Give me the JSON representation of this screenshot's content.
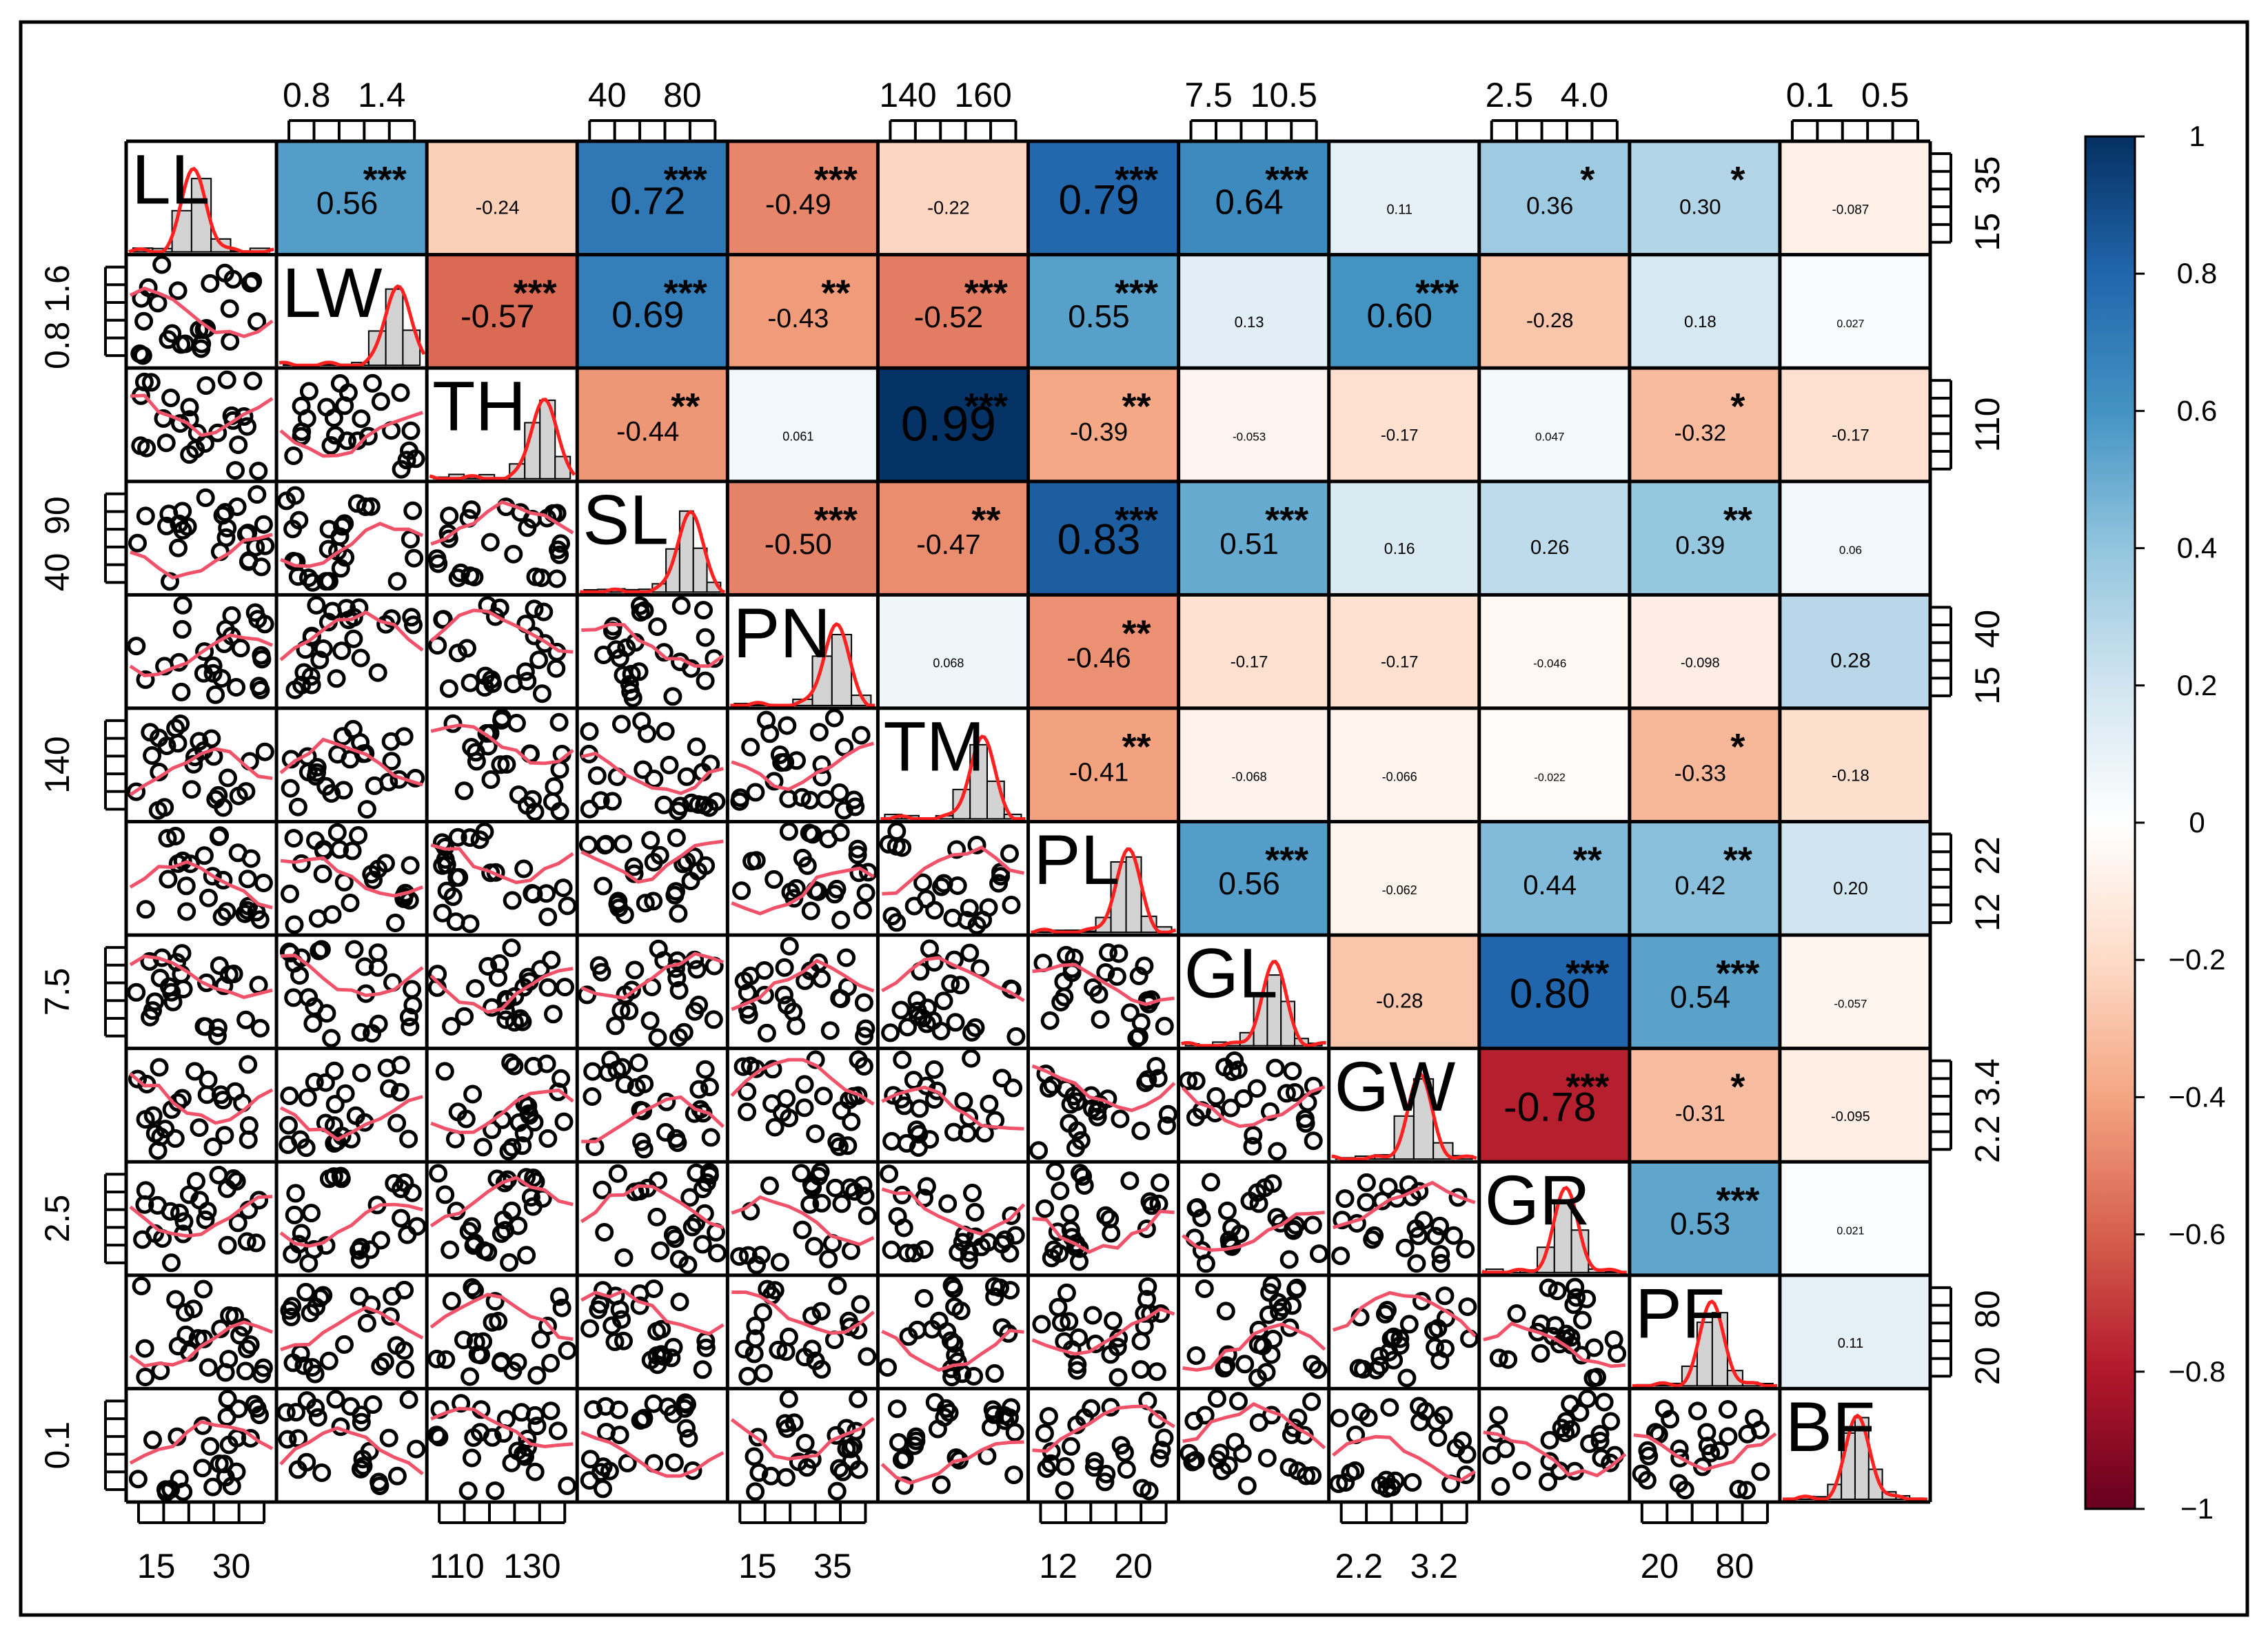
{
  "chart_data": {
    "type": "correlation-matrix",
    "variables": [
      "LL",
      "LW",
      "TH",
      "SL",
      "PN",
      "TM",
      "PL",
      "GL",
      "GW",
      "GR",
      "PF",
      "BF"
    ],
    "correlations": [
      {
        "row": 0,
        "col": 1,
        "r": 0.56,
        "label": "0.56",
        "sig": "***"
      },
      {
        "row": 0,
        "col": 2,
        "r": -0.24,
        "label": "-0.24",
        "sig": ""
      },
      {
        "row": 0,
        "col": 3,
        "r": 0.72,
        "label": "0.72",
        "sig": "***"
      },
      {
        "row": 0,
        "col": 4,
        "r": -0.49,
        "label": "-0.49",
        "sig": "***"
      },
      {
        "row": 0,
        "col": 5,
        "r": -0.22,
        "label": "-0.22",
        "sig": ""
      },
      {
        "row": 0,
        "col": 6,
        "r": 0.79,
        "label": "0.79",
        "sig": "***"
      },
      {
        "row": 0,
        "col": 7,
        "r": 0.64,
        "label": "0.64",
        "sig": "***"
      },
      {
        "row": 0,
        "col": 8,
        "r": 0.11,
        "label": "0.11",
        "sig": ""
      },
      {
        "row": 0,
        "col": 9,
        "r": 0.36,
        "label": "0.36",
        "sig": "*"
      },
      {
        "row": 0,
        "col": 10,
        "r": 0.3,
        "label": "0.30",
        "sig": "*"
      },
      {
        "row": 0,
        "col": 11,
        "r": -0.087,
        "label": "-0.087",
        "sig": ""
      },
      {
        "row": 1,
        "col": 2,
        "r": -0.57,
        "label": "-0.57",
        "sig": "***"
      },
      {
        "row": 1,
        "col": 3,
        "r": 0.69,
        "label": "0.69",
        "sig": "***"
      },
      {
        "row": 1,
        "col": 4,
        "r": -0.43,
        "label": "-0.43",
        "sig": "**"
      },
      {
        "row": 1,
        "col": 5,
        "r": -0.52,
        "label": "-0.52",
        "sig": "***"
      },
      {
        "row": 1,
        "col": 6,
        "r": 0.55,
        "label": "0.55",
        "sig": "***"
      },
      {
        "row": 1,
        "col": 7,
        "r": 0.13,
        "label": "0.13",
        "sig": ""
      },
      {
        "row": 1,
        "col": 8,
        "r": 0.6,
        "label": "0.60",
        "sig": "***"
      },
      {
        "row": 1,
        "col": 9,
        "r": -0.28,
        "label": "-0.28",
        "sig": ""
      },
      {
        "row": 1,
        "col": 10,
        "r": 0.18,
        "label": "0.18",
        "sig": ""
      },
      {
        "row": 1,
        "col": 11,
        "r": 0.027,
        "label": "0.027",
        "sig": ""
      },
      {
        "row": 2,
        "col": 3,
        "r": -0.44,
        "label": "-0.44",
        "sig": "**"
      },
      {
        "row": 2,
        "col": 4,
        "r": 0.061,
        "label": "0.061",
        "sig": ""
      },
      {
        "row": 2,
        "col": 5,
        "r": 0.99,
        "label": "0.99",
        "sig": "***"
      },
      {
        "row": 2,
        "col": 6,
        "r": -0.39,
        "label": "-0.39",
        "sig": "**"
      },
      {
        "row": 2,
        "col": 7,
        "r": -0.053,
        "label": "-0.053",
        "sig": ""
      },
      {
        "row": 2,
        "col": 8,
        "r": -0.17,
        "label": "-0.17",
        "sig": ""
      },
      {
        "row": 2,
        "col": 9,
        "r": 0.047,
        "label": "0.047",
        "sig": ""
      },
      {
        "row": 2,
        "col": 10,
        "r": -0.32,
        "label": "-0.32",
        "sig": "*"
      },
      {
        "row": 2,
        "col": 11,
        "r": -0.17,
        "label": "-0.17",
        "sig": ""
      },
      {
        "row": 3,
        "col": 4,
        "r": -0.5,
        "label": "-0.50",
        "sig": "***"
      },
      {
        "row": 3,
        "col": 5,
        "r": -0.47,
        "label": "-0.47",
        "sig": "**"
      },
      {
        "row": 3,
        "col": 6,
        "r": 0.83,
        "label": "0.83",
        "sig": "***"
      },
      {
        "row": 3,
        "col": 7,
        "r": 0.51,
        "label": "0.51",
        "sig": "***"
      },
      {
        "row": 3,
        "col": 8,
        "r": 0.16,
        "label": "0.16",
        "sig": ""
      },
      {
        "row": 3,
        "col": 9,
        "r": 0.26,
        "label": "0.26",
        "sig": ""
      },
      {
        "row": 3,
        "col": 10,
        "r": 0.39,
        "label": "0.39",
        "sig": "**"
      },
      {
        "row": 3,
        "col": 11,
        "r": 0.06,
        "label": "0.06",
        "sig": ""
      },
      {
        "row": 4,
        "col": 5,
        "r": 0.068,
        "label": "0.068",
        "sig": ""
      },
      {
        "row": 4,
        "col": 6,
        "r": -0.46,
        "label": "-0.46",
        "sig": "**"
      },
      {
        "row": 4,
        "col": 7,
        "r": -0.17,
        "label": "-0.17",
        "sig": ""
      },
      {
        "row": 4,
        "col": 8,
        "r": -0.17,
        "label": "-0.17",
        "sig": ""
      },
      {
        "row": 4,
        "col": 9,
        "r": -0.046,
        "label": "-0.046",
        "sig": ""
      },
      {
        "row": 4,
        "col": 10,
        "r": -0.098,
        "label": "-0.098",
        "sig": ""
      },
      {
        "row": 4,
        "col": 11,
        "r": 0.28,
        "label": "0.28",
        "sig": ""
      },
      {
        "row": 5,
        "col": 6,
        "r": -0.41,
        "label": "-0.41",
        "sig": "**"
      },
      {
        "row": 5,
        "col": 7,
        "r": -0.068,
        "label": "-0.068",
        "sig": ""
      },
      {
        "row": 5,
        "col": 8,
        "r": -0.066,
        "label": "-0.066",
        "sig": ""
      },
      {
        "row": 5,
        "col": 9,
        "r": -0.022,
        "label": "-0.022",
        "sig": ""
      },
      {
        "row": 5,
        "col": 10,
        "r": -0.33,
        "label": "-0.33",
        "sig": "*"
      },
      {
        "row": 5,
        "col": 11,
        "r": -0.18,
        "label": "-0.18",
        "sig": ""
      },
      {
        "row": 6,
        "col": 7,
        "r": 0.56,
        "label": "0.56",
        "sig": "***"
      },
      {
        "row": 6,
        "col": 8,
        "r": -0.062,
        "label": "-0.062",
        "sig": ""
      },
      {
        "row": 6,
        "col": 9,
        "r": 0.44,
        "label": "0.44",
        "sig": "**"
      },
      {
        "row": 6,
        "col": 10,
        "r": 0.42,
        "label": "0.42",
        "sig": "**"
      },
      {
        "row": 6,
        "col": 11,
        "r": 0.2,
        "label": "0.20",
        "sig": ""
      },
      {
        "row": 7,
        "col": 8,
        "r": -0.28,
        "label": "-0.28",
        "sig": ""
      },
      {
        "row": 7,
        "col": 9,
        "r": 0.8,
        "label": "0.80",
        "sig": "***"
      },
      {
        "row": 7,
        "col": 10,
        "r": 0.54,
        "label": "0.54",
        "sig": "***"
      },
      {
        "row": 7,
        "col": 11,
        "r": -0.057,
        "label": "-0.057",
        "sig": ""
      },
      {
        "row": 8,
        "col": 9,
        "r": -0.78,
        "label": "-0.78",
        "sig": "***"
      },
      {
        "row": 8,
        "col": 10,
        "r": -0.31,
        "label": "-0.31",
        "sig": "*"
      },
      {
        "row": 8,
        "col": 11,
        "r": -0.095,
        "label": "-0.095",
        "sig": ""
      },
      {
        "row": 9,
        "col": 10,
        "r": 0.53,
        "label": "0.53",
        "sig": "***"
      },
      {
        "row": 9,
        "col": 11,
        "r": 0.021,
        "label": "0.021",
        "sig": ""
      },
      {
        "row": 10,
        "col": 11,
        "r": 0.11,
        "label": "0.11",
        "sig": ""
      }
    ],
    "axis_labels": {
      "top": [
        {
          "col": 1,
          "labels": [
            "0.8",
            "1.4"
          ]
        },
        {
          "col": 3,
          "labels": [
            "40",
            "80"
          ]
        },
        {
          "col": 5,
          "labels": [
            "140",
            "160"
          ]
        },
        {
          "col": 7,
          "labels": [
            "7.5",
            "10.5"
          ]
        },
        {
          "col": 9,
          "labels": [
            "2.5",
            "4.0"
          ]
        },
        {
          "col": 11,
          "labels": [
            "0.1",
            "0.5"
          ]
        }
      ],
      "bottom": [
        {
          "col": 0,
          "labels": [
            "15",
            "30"
          ]
        },
        {
          "col": 2,
          "labels": [
            "110",
            "130"
          ]
        },
        {
          "col": 4,
          "labels": [
            "15",
            "35"
          ]
        },
        {
          "col": 6,
          "labels": [
            "12",
            "20"
          ]
        },
        {
          "col": 8,
          "labels": [
            "2.2",
            "3.2"
          ]
        },
        {
          "col": 10,
          "labels": [
            "20",
            "80"
          ]
        }
      ],
      "left": [
        {
          "row": 1,
          "labels": [
            "0.8",
            "1.6"
          ]
        },
        {
          "row": 3,
          "labels": [
            "40",
            "90"
          ]
        },
        {
          "row": 5,
          "labels": [
            "140"
          ]
        },
        {
          "row": 7,
          "labels": [
            "7.5"
          ]
        },
        {
          "row": 9,
          "labels": [
            "2.5"
          ]
        },
        {
          "row": 11,
          "labels": [
            "0.1"
          ]
        }
      ],
      "right": [
        {
          "row": 0,
          "labels": [
            "15",
            "35"
          ]
        },
        {
          "row": 2,
          "labels": [
            "110"
          ]
        },
        {
          "row": 4,
          "labels": [
            "15",
            "40"
          ]
        },
        {
          "row": 6,
          "labels": [
            "12",
            "22"
          ]
        },
        {
          "row": 8,
          "labels": [
            "2.2",
            "3.4"
          ]
        },
        {
          "row": 10,
          "labels": [
            "20",
            "80"
          ]
        }
      ]
    },
    "colorbar": {
      "range": [
        -1,
        1
      ],
      "ticks": [
        "1",
        "0.8",
        "0.6",
        "0.4",
        "0.2",
        "0",
        "−0.2",
        "−0.4",
        "−0.6",
        "−0.8",
        "−1"
      ],
      "low_color": "#67001f",
      "mid_color": "#ffffff",
      "high_color": "#053061"
    },
    "diagonal": "histogram with density curve",
    "lower_panels": "scatter plots with loess smoothing line",
    "line_color": "#f0526a"
  }
}
